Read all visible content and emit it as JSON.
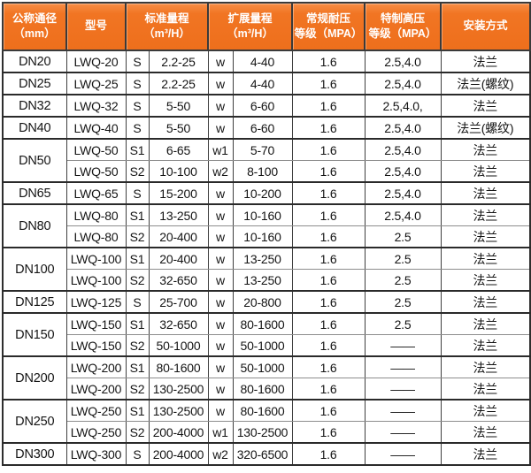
{
  "table": {
    "header": {
      "col_dn": {
        "line1": "公称通径",
        "line2": "（mm）"
      },
      "col_model": {
        "line1": "型号"
      },
      "col_std": {
        "line1": "标准量程",
        "line2": "（m³/H）"
      },
      "col_ext": {
        "line1": "扩展量程",
        "line2": "（m³/H）"
      },
      "col_reg": {
        "line1": "常规耐压",
        "line2": "等级（MPA）"
      },
      "col_high": {
        "line1": "特制高压",
        "line2": "等级（MPA）"
      },
      "col_install": {
        "line1": "安装方式"
      }
    },
    "rows": [
      {
        "dn": "DN20",
        "group": 1,
        "model": "LWQ-20",
        "s": "S",
        "std": "2.2-25",
        "w": "w",
        "ext": "4-40",
        "reg": "1.6",
        "high": "2.5,4.0",
        "install": "法兰"
      },
      {
        "dn": "DN25",
        "group": 1,
        "model": "LWQ-25",
        "s": "S",
        "std": "2.2-25",
        "w": "w",
        "ext": "4-40",
        "reg": "1.6",
        "high": "2.5,4.0",
        "install": "法兰(螺纹)"
      },
      {
        "dn": "DN32",
        "group": 1,
        "model": "LWQ-32",
        "s": "S",
        "std": "5-50",
        "w": "w",
        "ext": "6-60",
        "reg": "1.6",
        "high": "2.5,4.0,",
        "install": "法兰"
      },
      {
        "dn": "DN40",
        "group": 1,
        "model": "LWQ-40",
        "s": "S",
        "std": "5-50",
        "w": "w",
        "ext": "6-60",
        "reg": "1.6",
        "high": "2.5,4.0",
        "install": "法兰(螺纹)"
      },
      {
        "dn": "DN50",
        "group": 2,
        "model": "LWQ-50",
        "s": "S1",
        "std": "6-65",
        "w": "w1",
        "ext": "5-70",
        "reg": "1.6",
        "high": "2.5,4.0",
        "install": "法兰"
      },
      {
        "model": "LWQ-50",
        "s": "S2",
        "std": "10-100",
        "w": "w2",
        "ext": "8-100",
        "reg": "1.6",
        "high": "2.5,4.0",
        "install": "法兰"
      },
      {
        "dn": "DN65",
        "group": 1,
        "model": "LWQ-65",
        "s": "S",
        "std": "15-200",
        "w": "w",
        "ext": "10-200",
        "reg": "1.6",
        "high": "2.5,4.0",
        "install": "法兰"
      },
      {
        "dn": "DN80",
        "group": 2,
        "model": "LWQ-80",
        "s": "S1",
        "std": "13-250",
        "w": "w",
        "ext": "10-160",
        "reg": "1.6",
        "high": "2.5,4.0",
        "install": "法兰"
      },
      {
        "model": "LWQ-80",
        "s": "S2",
        "std": "20-400",
        "w": "w",
        "ext": "10-160",
        "reg": "1.6",
        "high": "2.5",
        "install": "法兰"
      },
      {
        "dn": "DN100",
        "group": 2,
        "model": "LWQ-100",
        "s": "S1",
        "std": "20-400",
        "w": "w",
        "ext": "13-250",
        "reg": "1.6",
        "high": "2.5",
        "install": "法兰"
      },
      {
        "model": "LWQ-100",
        "s": "S2",
        "std": "32-650",
        "w": "w",
        "ext": "13-250",
        "reg": "1.6",
        "high": "2.5",
        "install": "法兰"
      },
      {
        "dn": "DN125",
        "group": 1,
        "model": "LWQ-125",
        "s": "S",
        "std": "25-700",
        "w": "w",
        "ext": "20-800",
        "reg": "1.6",
        "high": "2.5",
        "install": "法兰"
      },
      {
        "dn": "DN150",
        "group": 2,
        "model": "LWQ-150",
        "s": "S1",
        "std": "32-650",
        "w": "w",
        "ext": "80-1600",
        "reg": "1.6",
        "high": "2.5",
        "install": "法兰"
      },
      {
        "model": "LWQ-150",
        "s": "S2",
        "std": "50-1000",
        "w": "w",
        "ext": "50-1000",
        "reg": "1.6",
        "high": "——",
        "install": "法兰"
      },
      {
        "dn": "DN200",
        "group": 2,
        "model": "LWQ-200",
        "s": "S1",
        "std": "80-1600",
        "w": "w",
        "ext": "50-1000",
        "reg": "1.6",
        "high": "——",
        "install": "法兰"
      },
      {
        "model": "LWQ-200",
        "s": "S2",
        "std": "130-2500",
        "w": "w",
        "ext": "80-1600",
        "reg": "1.6",
        "high": "——",
        "install": "法兰"
      },
      {
        "dn": "DN250",
        "group": 2,
        "model": "LWQ-250",
        "s": "S1",
        "std": "130-2500",
        "w": "w",
        "ext": "80-1600",
        "reg": "1.6",
        "high": "——",
        "install": "法兰"
      },
      {
        "model": "LWQ-250",
        "s": "S2",
        "std": "200-4000",
        "w": "w1",
        "ext": "130-2500",
        "reg": "1.6",
        "high": "——",
        "install": "法兰"
      },
      {
        "dn": "DN300",
        "group": 1,
        "model": "LWQ-300",
        "s": "S",
        "std": "200-4000",
        "w": "w2",
        "ext": "320-6500",
        "reg": "1.6",
        "high": "——",
        "install": "法兰"
      }
    ],
    "colors": {
      "header_bg": "#ef701d",
      "header_text": "#ffffff",
      "border_dark": "#2e2e2e",
      "border_light": "#8d8d8d",
      "body_text": "#141414"
    }
  }
}
